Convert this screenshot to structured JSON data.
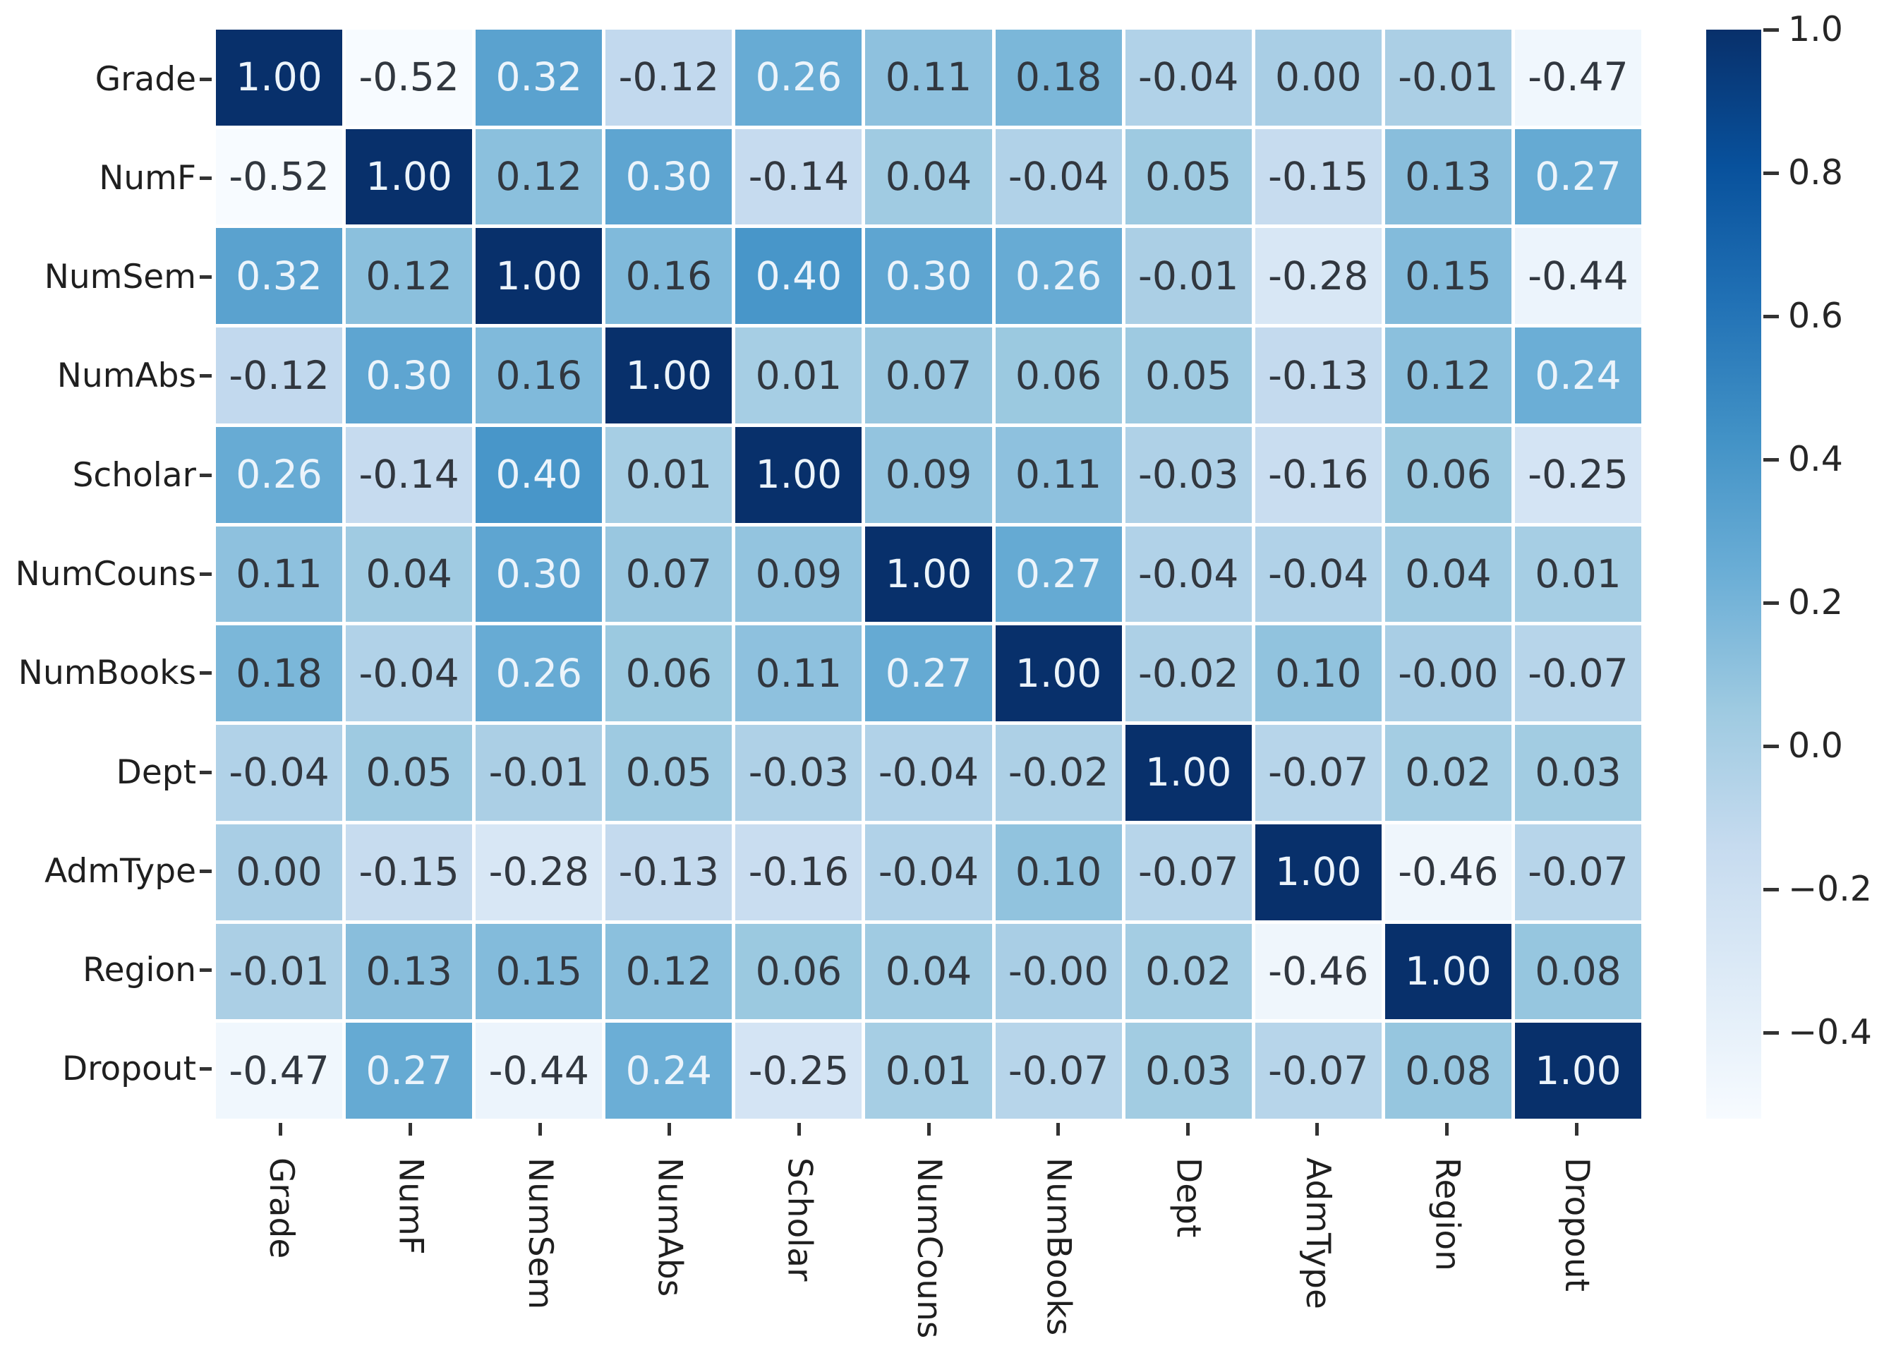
{
  "chart_data": {
    "type": "heatmap",
    "title": "",
    "xlabel": "",
    "ylabel": "",
    "x_labels": [
      "Grade",
      "NumF",
      "NumSem",
      "NumAbs",
      "Scholar",
      "NumCouns",
      "NumBooks",
      "Dept",
      "AdmType",
      "Region",
      "Dropout"
    ],
    "y_labels": [
      "Grade",
      "NumF",
      "NumSem",
      "NumAbs",
      "Scholar",
      "NumCouns",
      "NumBooks",
      "Dept",
      "AdmType",
      "Region",
      "Dropout"
    ],
    "matrix": [
      [
        "1.00",
        "-0.52",
        "0.32",
        "-0.12",
        "0.26",
        "0.11",
        "0.18",
        "-0.04",
        "0.00",
        "-0.01",
        "-0.47"
      ],
      [
        "-0.52",
        "1.00",
        "0.12",
        "0.30",
        "-0.14",
        "0.04",
        "-0.04",
        "0.05",
        "-0.15",
        "0.13",
        "0.27"
      ],
      [
        "0.32",
        "0.12",
        "1.00",
        "0.16",
        "0.40",
        "0.30",
        "0.26",
        "-0.01",
        "-0.28",
        "0.15",
        "-0.44"
      ],
      [
        "-0.12",
        "0.30",
        "0.16",
        "1.00",
        "0.01",
        "0.07",
        "0.06",
        "0.05",
        "-0.13",
        "0.12",
        "0.24"
      ],
      [
        "0.26",
        "-0.14",
        "0.40",
        "0.01",
        "1.00",
        "0.09",
        "0.11",
        "-0.03",
        "-0.16",
        "0.06",
        "-0.25"
      ],
      [
        "0.11",
        "0.04",
        "0.30",
        "0.07",
        "0.09",
        "1.00",
        "0.27",
        "-0.04",
        "-0.04",
        "0.04",
        "0.01"
      ],
      [
        "0.18",
        "-0.04",
        "0.26",
        "0.06",
        "0.11",
        "0.27",
        "1.00",
        "-0.02",
        "0.10",
        "-0.00",
        "-0.07"
      ],
      [
        "-0.04",
        "0.05",
        "-0.01",
        "0.05",
        "-0.03",
        "-0.04",
        "-0.02",
        "1.00",
        "-0.07",
        "0.02",
        "0.03"
      ],
      [
        "0.00",
        "-0.15",
        "-0.28",
        "-0.13",
        "-0.16",
        "-0.04",
        "0.10",
        "-0.07",
        "1.00",
        "-0.46",
        "-0.07"
      ],
      [
        "-0.01",
        "0.13",
        "0.15",
        "0.12",
        "0.06",
        "0.04",
        "-0.00",
        "0.02",
        "-0.46",
        "1.00",
        "0.08"
      ],
      [
        "-0.47",
        "0.27",
        "-0.44",
        "0.24",
        "-0.25",
        "0.01",
        "-0.07",
        "0.03",
        "-0.07",
        "0.08",
        "1.00"
      ]
    ],
    "colormap": "Blues",
    "vmin": -0.52,
    "vmax": 1.0,
    "annotations": true,
    "gridlines": "white",
    "legend_position": "colorbar-right",
    "colorbar": {
      "tick_values": [
        1.0,
        0.8,
        0.6,
        0.4,
        0.2,
        0.0,
        -0.2,
        -0.4
      ],
      "tick_labels": [
        "1.0",
        "0.8",
        "0.6",
        "0.4",
        "0.2",
        "0.0",
        "−0.2",
        "−0.4"
      ]
    }
  },
  "colors": {
    "background": "#ffffff",
    "gridline": "#ffffff",
    "cmap_min": "#f7fbff",
    "cmap_max": "#08306b",
    "cell_text_dark": "#31373f",
    "cell_text_light": "#ecf4fb",
    "axis_text": "#1f1f1f",
    "tick_mark": "#333333",
    "colorbar_label": "#262626"
  }
}
